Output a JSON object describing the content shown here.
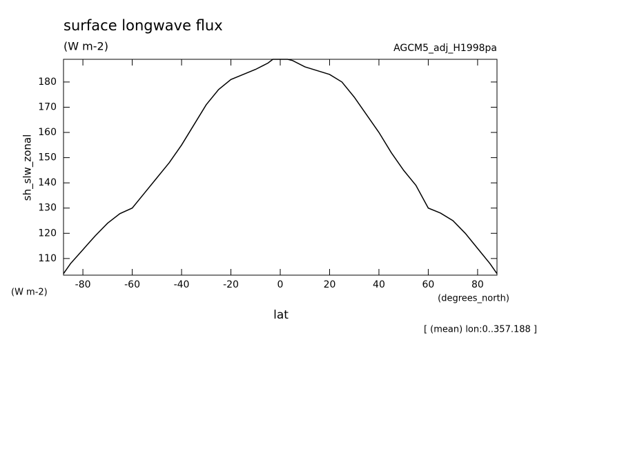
{
  "chart_data": {
    "type": "line",
    "title": "surface longwave flux",
    "title_units": "(W m-2)",
    "dataset": "AGCM5_adj_H1998pa",
    "y_label": "sh_slw_zonal",
    "y_units": "(W m-2)",
    "x_label": "lat",
    "x_units": "(degrees_north)",
    "note": "[ (mean) lon:0..357.188 ]",
    "xlim": [
      -87.86,
      87.86
    ],
    "ylim": [
      103.4,
      189.0
    ],
    "xticks": [
      -80,
      -60,
      -40,
      -20,
      0,
      20,
      40,
      60,
      80
    ],
    "yticks": [
      110,
      120,
      130,
      140,
      150,
      160,
      170,
      180
    ],
    "x": [
      -87.86,
      -85,
      -80,
      -75,
      -70,
      -65,
      -60,
      -55,
      -50,
      -45,
      -40,
      -35,
      -30,
      -25,
      -20,
      -15,
      -10,
      -5,
      -3,
      3,
      5,
      10,
      15,
      20,
      25,
      30,
      35,
      40,
      45,
      50,
      55,
      60,
      65,
      70,
      75,
      80,
      85,
      87.86
    ],
    "series": [
      {
        "color": "#000000",
        "values": [
          104,
          108,
          113.5,
          119,
          124,
          127.8,
          130,
          136,
          142,
          148,
          155,
          163,
          171,
          177,
          181,
          183,
          185,
          187.5,
          189,
          189,
          188.5,
          186,
          184.5,
          183,
          180,
          174,
          167,
          160,
          152,
          145,
          139,
          130,
          128,
          125,
          120,
          114,
          108,
          104
        ]
      }
    ]
  }
}
